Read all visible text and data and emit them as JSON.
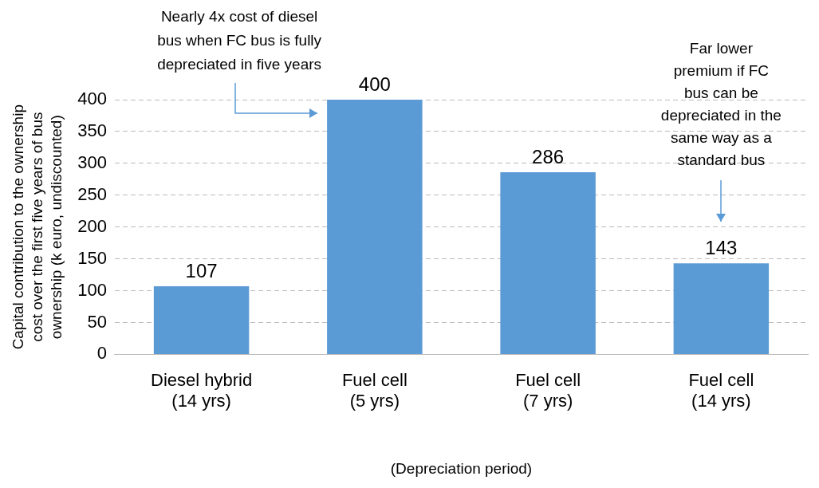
{
  "chart_data": {
    "type": "bar",
    "categories": [
      "Diesel hybrid\n(14 yrs)",
      "Fuel cell\n(5 yrs)",
      "Fuel cell\n(7 yrs)",
      "Fuel cell\n(14 yrs)"
    ],
    "values": [
      107,
      400,
      286,
      143
    ],
    "color": "#5b9bd5",
    "ylim": [
      0,
      400
    ],
    "yticks": [
      0,
      50,
      100,
      150,
      200,
      250,
      300,
      350,
      400
    ],
    "grid": "y",
    "data_labels": true,
    "ylabel": "Capital contribution to the ownership cost over the first five years of bus ownership (k euro, undiscounted)",
    "xlabel": "(Depreciation period)",
    "annotations": [
      "Nearly 4x cost of diesel\nbus when FC bus is fully\ndepreciated in five years",
      "Far lower\npremium if FC\nbus can be\ndepreciated in the\nsame way as a\nstandard bus"
    ]
  }
}
